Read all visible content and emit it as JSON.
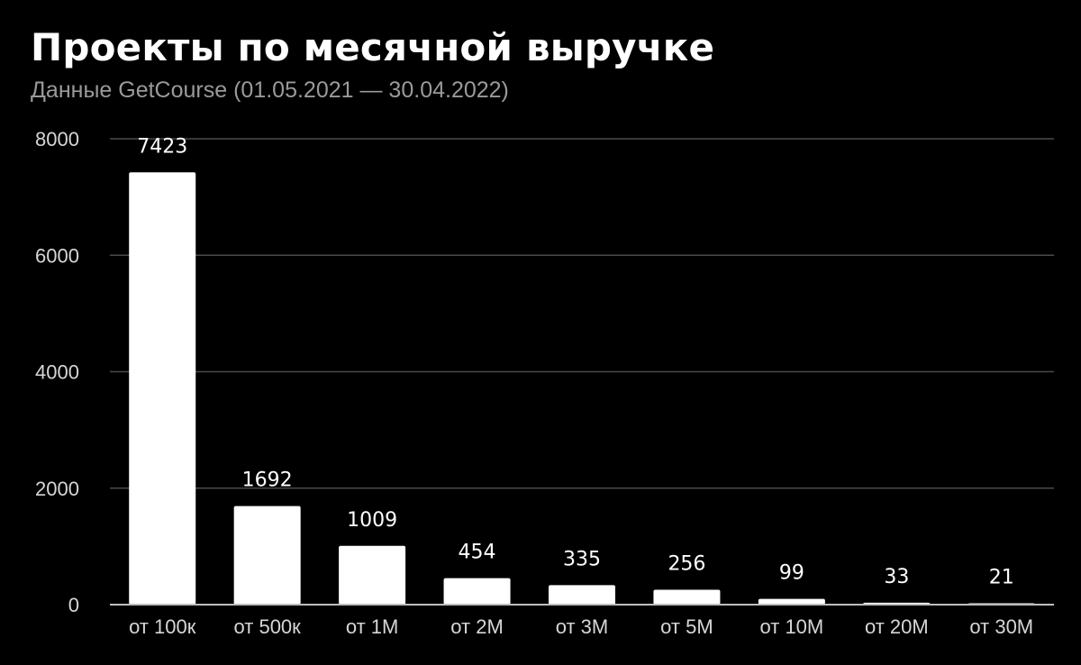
{
  "chart_data": {
    "type": "bar",
    "title": "Проекты по месячной выручке",
    "subtitle": "Данные GetCourse (01.05.2021 — 30.04.2022)",
    "xlabel": "",
    "ylabel": "",
    "categories": [
      "от 100к",
      "от 500к",
      "от 1М",
      "от 2М",
      "от 3М",
      "от 5М",
      "от 10М",
      "от 20М",
      "от 30М"
    ],
    "values": [
      7423,
      1692,
      1009,
      454,
      335,
      256,
      99,
      33,
      21
    ],
    "data_labels": [
      "7423",
      "1692",
      "1009",
      "454",
      "335",
      "256",
      "99",
      "33",
      "21"
    ],
    "yticks": [
      0,
      2000,
      4000,
      6000,
      8000
    ],
    "ytick_labels": [
      "0",
      "2000",
      "4000",
      "6000",
      "8000"
    ],
    "ylim": [
      0,
      8000
    ],
    "grid": true,
    "legend": "none",
    "colors": {
      "background": "#000000",
      "bar": "#ffffff",
      "grid": "#4a4a4a",
      "axis": "#bdbdbd"
    }
  }
}
